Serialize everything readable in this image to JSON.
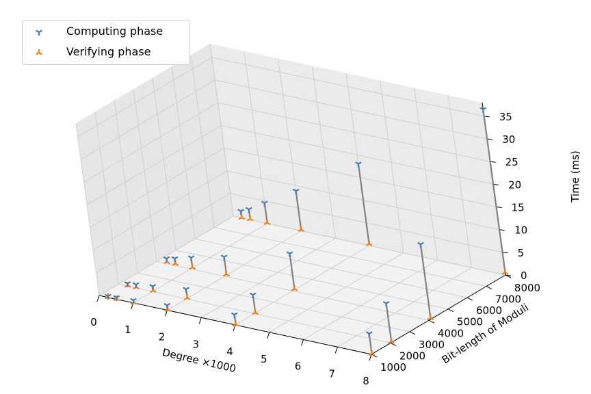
{
  "chart_data": {
    "type": "scatter3d",
    "x_label": "Degree ×1000",
    "y_label": "Bit-length of Moduli",
    "z_label": "Time (ms)",
    "x_ticks": [
      "0",
      "1",
      "2",
      "3",
      "4",
      "5",
      "6",
      "7",
      "8"
    ],
    "y_ticks": [
      "1000",
      "2000",
      "3000",
      "4000",
      "5000",
      "6000",
      "7000",
      "8000"
    ],
    "z_ticks": [
      "0",
      "5",
      "10",
      "15",
      "20",
      "25",
      "30",
      "35"
    ],
    "xlim": [
      0,
      8
    ],
    "ylim": [
      1000,
      8000
    ],
    "zlim": [
      0,
      38
    ],
    "grid": true,
    "legend_position": "top-left",
    "connector_color": "#808080",
    "series": [
      {
        "name": "Computing phase",
        "color": "#4a7bb0",
        "points": [
          {
            "x": 0.25,
            "y": 1024,
            "z": 0.2
          },
          {
            "x": 0.5,
            "y": 1024,
            "z": 0.3
          },
          {
            "x": 1.0,
            "y": 1024,
            "z": 0.5
          },
          {
            "x": 2.0,
            "y": 1024,
            "z": 1.0
          },
          {
            "x": 4.0,
            "y": 1024,
            "z": 2.2
          },
          {
            "x": 8.0,
            "y": 1024,
            "z": 4.5
          },
          {
            "x": 0.25,
            "y": 2048,
            "z": 0.4
          },
          {
            "x": 0.5,
            "y": 2048,
            "z": 0.6
          },
          {
            "x": 1.0,
            "y": 2048,
            "z": 1.0
          },
          {
            "x": 2.0,
            "y": 2048,
            "z": 2.0
          },
          {
            "x": 4.0,
            "y": 2048,
            "z": 4.0
          },
          {
            "x": 8.0,
            "y": 2048,
            "z": 8.6
          },
          {
            "x": 0.25,
            "y": 4096,
            "z": 0.8
          },
          {
            "x": 0.5,
            "y": 4096,
            "z": 1.2
          },
          {
            "x": 1.0,
            "y": 4096,
            "z": 2.2
          },
          {
            "x": 2.0,
            "y": 4096,
            "z": 4.0
          },
          {
            "x": 4.0,
            "y": 4096,
            "z": 8.0
          },
          {
            "x": 8.0,
            "y": 4096,
            "z": 16.5
          },
          {
            "x": 0.25,
            "y": 8192,
            "z": 1.5
          },
          {
            "x": 0.5,
            "y": 8192,
            "z": 2.3
          },
          {
            "x": 1.0,
            "y": 8192,
            "z": 4.5
          },
          {
            "x": 2.0,
            "y": 8192,
            "z": 8.8
          },
          {
            "x": 4.0,
            "y": 8192,
            "z": 18.0
          },
          {
            "x": 8.0,
            "y": 8192,
            "z": 36.5
          }
        ]
      },
      {
        "name": "Verifying phase",
        "color": "#f07f20",
        "points": [
          {
            "x": 0.25,
            "y": 1024,
            "z": 0.05
          },
          {
            "x": 0.5,
            "y": 1024,
            "z": 0.05
          },
          {
            "x": 1.0,
            "y": 1024,
            "z": 0.05
          },
          {
            "x": 2.0,
            "y": 1024,
            "z": 0.1
          },
          {
            "x": 4.0,
            "y": 1024,
            "z": 0.1
          },
          {
            "x": 8.0,
            "y": 1024,
            "z": 0.1
          },
          {
            "x": 0.25,
            "y": 2048,
            "z": 0.05
          },
          {
            "x": 0.5,
            "y": 2048,
            "z": 0.05
          },
          {
            "x": 1.0,
            "y": 2048,
            "z": 0.1
          },
          {
            "x": 2.0,
            "y": 2048,
            "z": 0.1
          },
          {
            "x": 4.0,
            "y": 2048,
            "z": 0.1
          },
          {
            "x": 8.0,
            "y": 2048,
            "z": 0.2
          },
          {
            "x": 0.25,
            "y": 4096,
            "z": 0.1
          },
          {
            "x": 0.5,
            "y": 4096,
            "z": 0.1
          },
          {
            "x": 1.0,
            "y": 4096,
            "z": 0.1
          },
          {
            "x": 2.0,
            "y": 4096,
            "z": 0.2
          },
          {
            "x": 4.0,
            "y": 4096,
            "z": 0.2
          },
          {
            "x": 8.0,
            "y": 4096,
            "z": 0.3
          },
          {
            "x": 0.25,
            "y": 8192,
            "z": 0.1
          },
          {
            "x": 0.5,
            "y": 8192,
            "z": 0.2
          },
          {
            "x": 1.0,
            "y": 8192,
            "z": 0.2
          },
          {
            "x": 2.0,
            "y": 8192,
            "z": 0.3
          },
          {
            "x": 4.0,
            "y": 8192,
            "z": 0.4
          },
          {
            "x": 8.0,
            "y": 8192,
            "z": 0.6
          }
        ]
      }
    ]
  }
}
